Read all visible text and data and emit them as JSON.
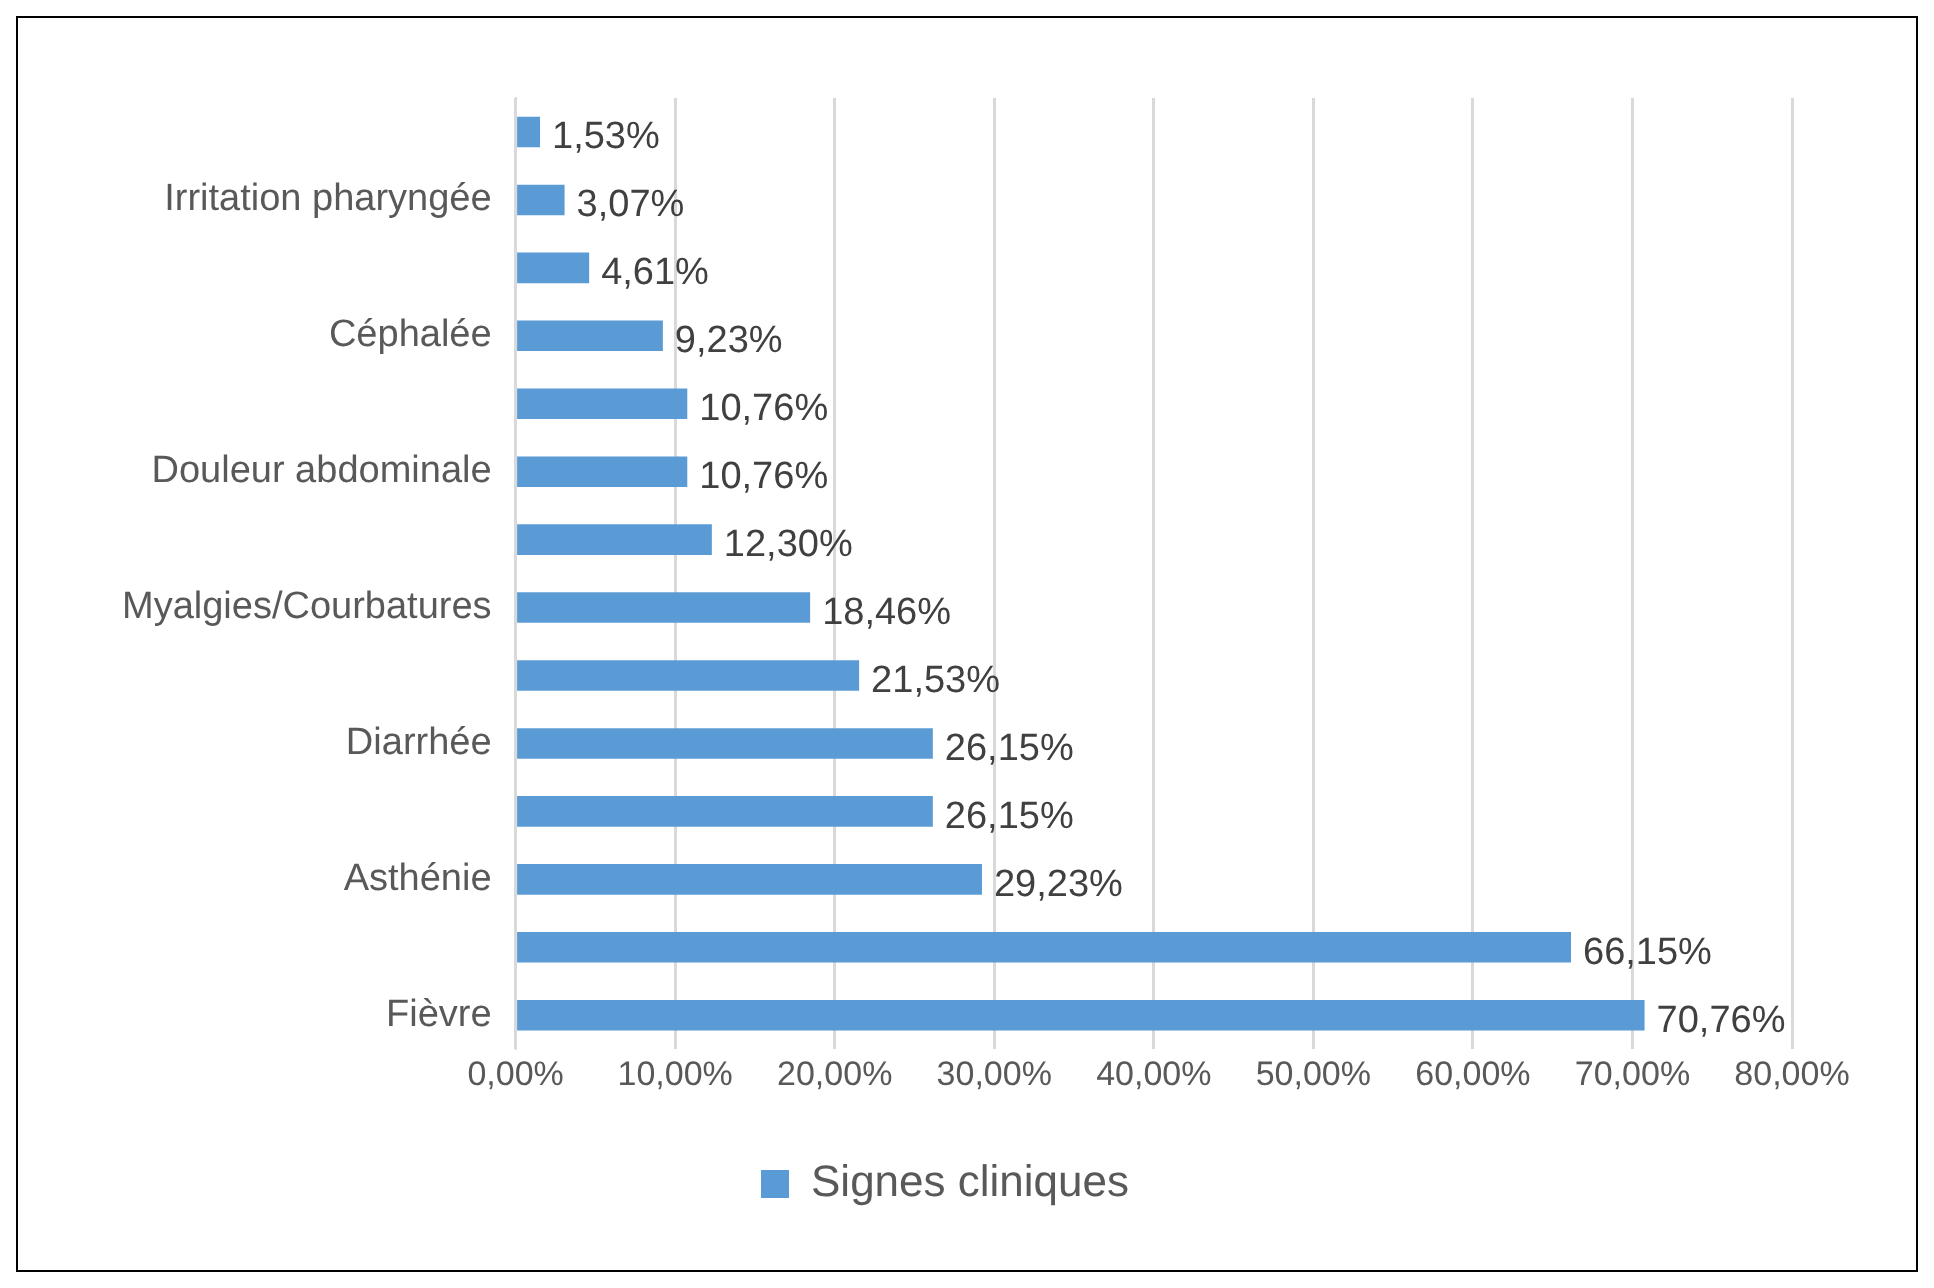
{
  "chart_data": {
    "type": "bar",
    "orientation": "horizontal",
    "categories": [
      null,
      "Irritation pharyngée",
      null,
      "Céphalée",
      null,
      "Douleur abdominale",
      null,
      "Myalgies/Courbatures",
      null,
      "Diarrhée",
      null,
      "Asthénie",
      null,
      "Fièvre"
    ],
    "series": [
      {
        "name": "Signes cliniques",
        "color": "#5b9bd5",
        "values": [
          1.53,
          3.07,
          4.61,
          9.23,
          10.76,
          10.76,
          12.3,
          18.46,
          21.53,
          26.15,
          26.15,
          29.23,
          66.15,
          70.76
        ],
        "value_labels": [
          "1,53%",
          "3,07%",
          "4,61%",
          "9,23%",
          "10,76%",
          "10,76%",
          "12,30%",
          "18,46%",
          "21,53%",
          "26,15%",
          "26,15%",
          "29,23%",
          "66,15%",
          "70,76%"
        ]
      }
    ],
    "xlim": [
      0,
      80
    ],
    "xticks": [
      {
        "value": 0,
        "label": "0,00%"
      },
      {
        "value": 10,
        "label": "10,00%"
      },
      {
        "value": 20,
        "label": "20,00%"
      },
      {
        "value": 30,
        "label": "30,00%"
      },
      {
        "value": 40,
        "label": "40,00%"
      },
      {
        "value": 50,
        "label": "50,00%"
      },
      {
        "value": 60,
        "label": "60,00%"
      },
      {
        "value": 70,
        "label": "70,00%"
      },
      {
        "value": 80,
        "label": "80,00%"
      }
    ],
    "grid": "x",
    "legend": "bottom"
  }
}
